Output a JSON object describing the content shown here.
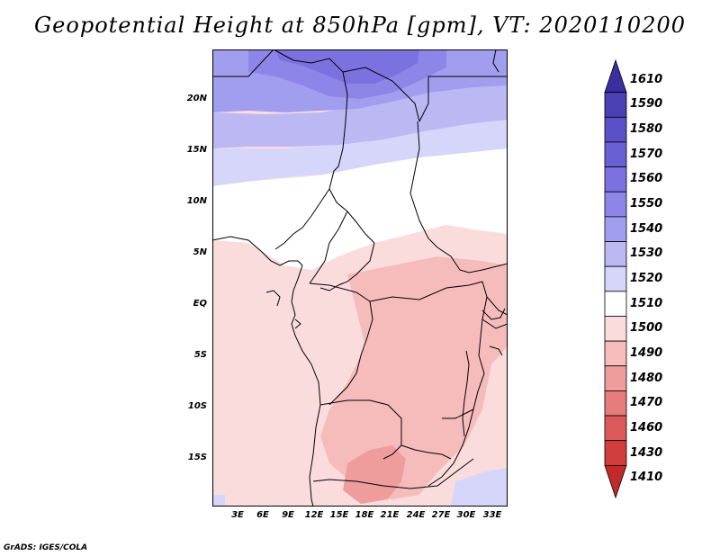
{
  "title": "Geopotential Height at 850hPa [gpm], VT: 2020110200",
  "footer": "GrADS: IGES/COLA",
  "lat_labels": [
    "20N",
    "15N",
    "10N",
    "5N",
    "EQ",
    "5S",
    "10S",
    "15S"
  ],
  "lon_labels": [
    "3E",
    "6E",
    "9E",
    "12E",
    "15E",
    "18E",
    "21E",
    "24E",
    "27E",
    "30E",
    "33E"
  ],
  "colorbar": {
    "levels": [
      "1610",
      "1590",
      "1580",
      "1570",
      "1560",
      "1550",
      "1540",
      "1530",
      "1520",
      "1510",
      "1500",
      "1490",
      "1480",
      "1470",
      "1460",
      "1430",
      "1410"
    ],
    "colors": [
      "#3b2fa0",
      "#4a3fb5",
      "#5a50c8",
      "#6a60d6",
      "#7b72e0",
      "#8d86e8",
      "#a29eef",
      "#bbb8f4",
      "#d6d5fa",
      "#ffffff",
      "#fbdcdc",
      "#f6bcbc",
      "#ee9c9c",
      "#e67c7c",
      "#dc5a5a",
      "#d23d3d",
      "#c22a2a"
    ]
  },
  "regions": [
    {
      "name": "north-band-1560",
      "color": "#7b72e0"
    },
    {
      "name": "north-band-1550",
      "color": "#8d86e8"
    },
    {
      "name": "band-1540",
      "color": "#a29eef"
    },
    {
      "name": "band-1530",
      "color": "#bbb8f4"
    },
    {
      "name": "band-1520",
      "color": "#d6d5fa"
    },
    {
      "name": "band-1510",
      "color": "#ffffff"
    },
    {
      "name": "band-1500",
      "color": "#fbdcdc"
    },
    {
      "name": "band-1490",
      "color": "#f6bcbc"
    },
    {
      "name": "band-1480",
      "color": "#ee9c9c"
    }
  ]
}
